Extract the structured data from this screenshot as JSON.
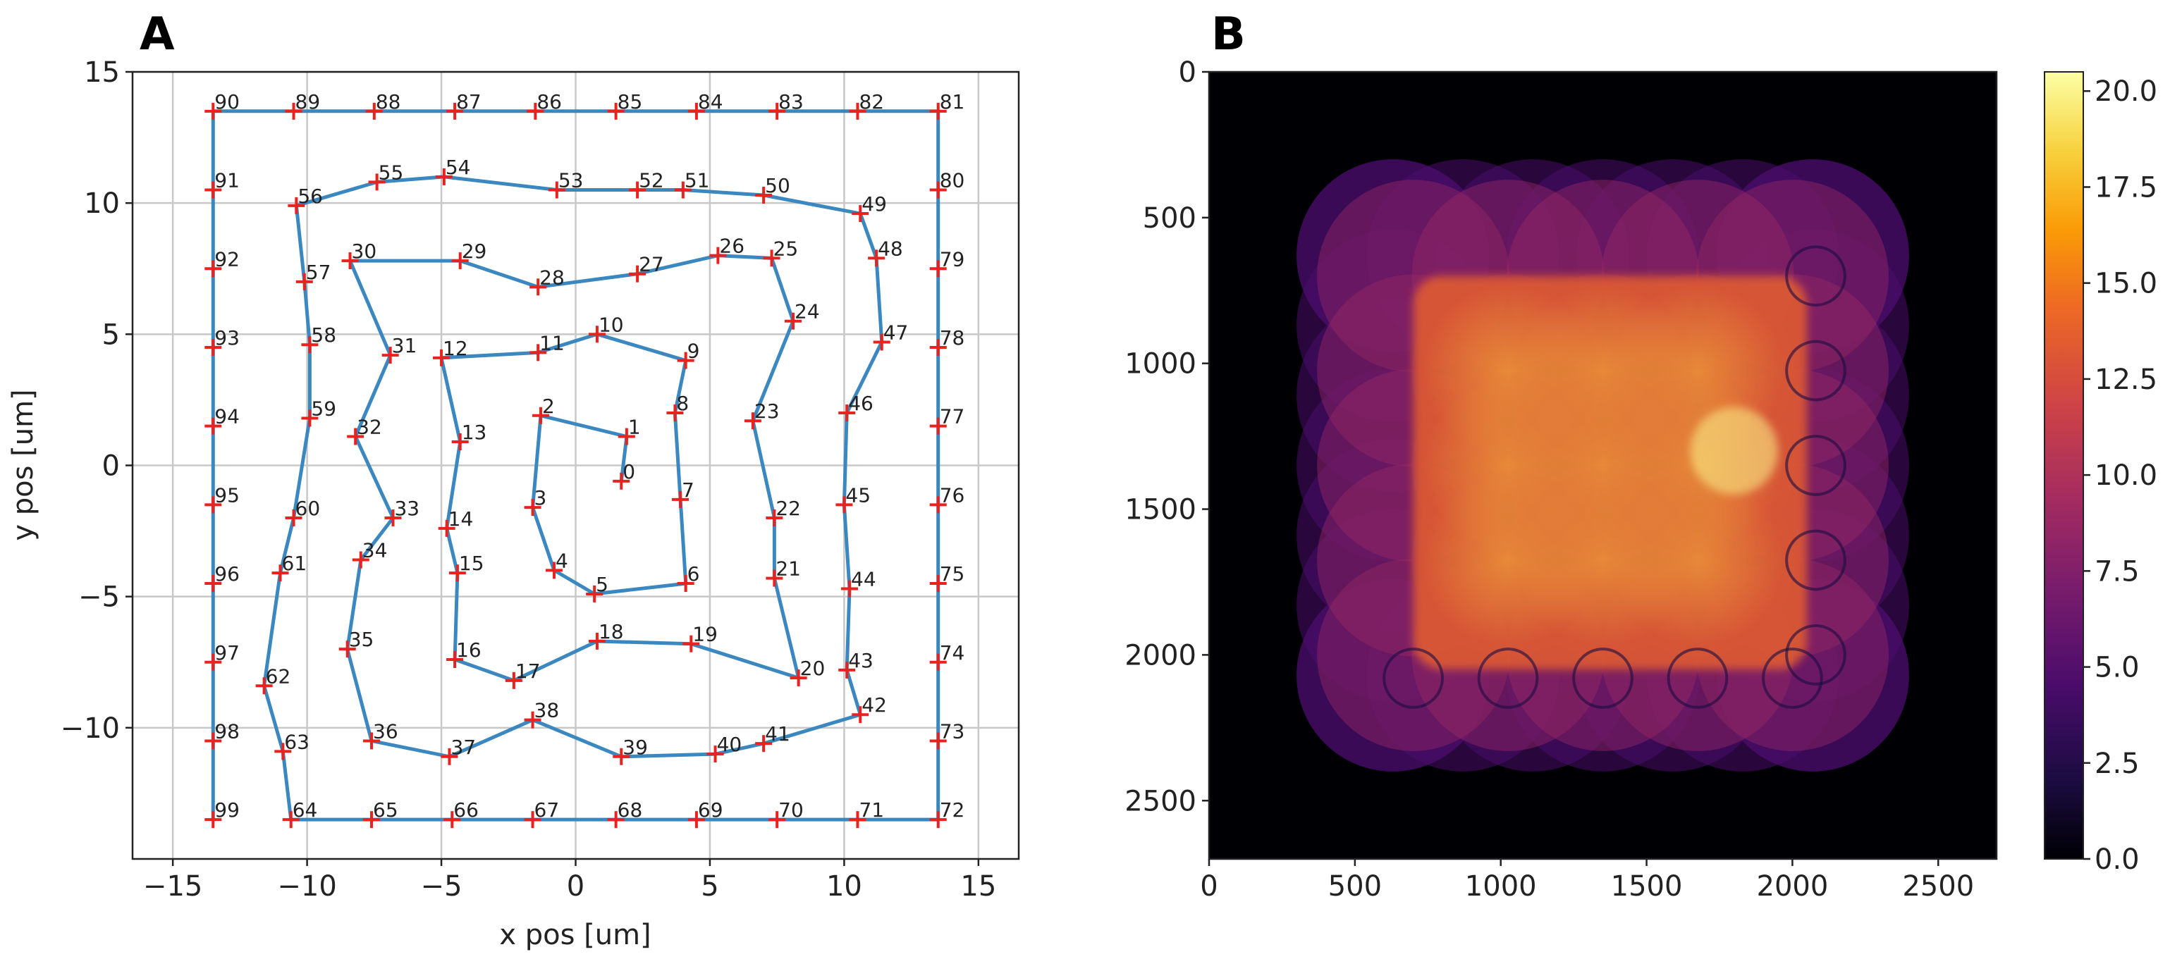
{
  "chart_data": [
    {
      "type": "line",
      "panel_label": "A",
      "xlabel": "x pos [um]",
      "ylabel": "y pos [um]",
      "xlim": [
        -16.5,
        16.5
      ],
      "ylim": [
        -15,
        15
      ],
      "xticks": [
        -15,
        -10,
        -5,
        0,
        5,
        10,
        15
      ],
      "yticks": [
        -10,
        -5,
        0,
        5,
        10,
        15
      ],
      "xtick_labels": [
        "−15",
        "−10",
        "−5",
        "0",
        "5",
        "10",
        "15"
      ],
      "ytick_labels": [
        "−10",
        "−5",
        "0",
        "5",
        "10",
        "15"
      ],
      "grid": true,
      "line_color": "#3b87bf",
      "marker_color": "#e8231f",
      "series": [
        {
          "name": "scan path",
          "points": [
            {
              "label": "0",
              "x": 1.7,
              "y": -0.6
            },
            {
              "label": "1",
              "x": 1.9,
              "y": 1.1
            },
            {
              "label": "2",
              "x": -1.3,
              "y": 1.9
            },
            {
              "label": "3",
              "x": -1.6,
              "y": -1.6
            },
            {
              "label": "4",
              "x": -0.8,
              "y": -4.0
            },
            {
              "label": "5",
              "x": 0.7,
              "y": -4.9
            },
            {
              "label": "6",
              "x": 4.1,
              "y": -4.5
            },
            {
              "label": "7",
              "x": 3.9,
              "y": -1.3
            },
            {
              "label": "8",
              "x": 3.7,
              "y": 2.0
            },
            {
              "label": "9",
              "x": 4.1,
              "y": 4.0
            },
            {
              "label": "10",
              "x": 0.8,
              "y": 5.0
            },
            {
              "label": "11",
              "x": -1.4,
              "y": 4.3
            },
            {
              "label": "12",
              "x": -5.0,
              "y": 4.1
            },
            {
              "label": "13",
              "x": -4.3,
              "y": 0.9
            },
            {
              "label": "14",
              "x": -4.8,
              "y": -2.4
            },
            {
              "label": "15",
              "x": -4.4,
              "y": -4.1
            },
            {
              "label": "16",
              "x": -4.5,
              "y": -7.4
            },
            {
              "label": "17",
              "x": -2.3,
              "y": -8.2
            },
            {
              "label": "18",
              "x": 0.8,
              "y": -6.7
            },
            {
              "label": "19",
              "x": 4.3,
              "y": -6.8
            },
            {
              "label": "20",
              "x": 8.3,
              "y": -8.1
            },
            {
              "label": "21",
              "x": 7.4,
              "y": -4.3
            },
            {
              "label": "22",
              "x": 7.4,
              "y": -2.0
            },
            {
              "label": "23",
              "x": 6.6,
              "y": 1.7
            },
            {
              "label": "24",
              "x": 8.1,
              "y": 5.5
            },
            {
              "label": "25",
              "x": 7.3,
              "y": 7.9
            },
            {
              "label": "26",
              "x": 5.3,
              "y": 8.0
            },
            {
              "label": "27",
              "x": 2.3,
              "y": 7.3
            },
            {
              "label": "28",
              "x": -1.4,
              "y": 6.8
            },
            {
              "label": "29",
              "x": -4.3,
              "y": 7.8
            },
            {
              "label": "30",
              "x": -8.4,
              "y": 7.8
            },
            {
              "label": "31",
              "x": -6.9,
              "y": 4.2
            },
            {
              "label": "32",
              "x": -8.2,
              "y": 1.1
            },
            {
              "label": "33",
              "x": -6.8,
              "y": -2.0
            },
            {
              "label": "34",
              "x": -8.0,
              "y": -3.6
            },
            {
              "label": "35",
              "x": -8.5,
              "y": -7.0
            },
            {
              "label": "36",
              "x": -7.6,
              "y": -10.5
            },
            {
              "label": "37",
              "x": -4.7,
              "y": -11.1
            },
            {
              "label": "38",
              "x": -1.6,
              "y": -9.7
            },
            {
              "label": "39",
              "x": 1.7,
              "y": -11.1
            },
            {
              "label": "40",
              "x": 5.2,
              "y": -11.0
            },
            {
              "label": "41",
              "x": 7.0,
              "y": -10.6
            },
            {
              "label": "42",
              "x": 10.6,
              "y": -9.5
            },
            {
              "label": "43",
              "x": 10.1,
              "y": -7.8
            },
            {
              "label": "44",
              "x": 10.2,
              "y": -4.7
            },
            {
              "label": "45",
              "x": 10.0,
              "y": -1.5
            },
            {
              "label": "46",
              "x": 10.1,
              "y": 2.0
            },
            {
              "label": "47",
              "x": 11.4,
              "y": 4.7
            },
            {
              "label": "48",
              "x": 11.2,
              "y": 7.9
            },
            {
              "label": "49",
              "x": 10.6,
              "y": 9.6
            },
            {
              "label": "50",
              "x": 7.0,
              "y": 10.3
            },
            {
              "label": "51",
              "x": 4.0,
              "y": 10.5
            },
            {
              "label": "52",
              "x": 2.3,
              "y": 10.5
            },
            {
              "label": "53",
              "x": -0.7,
              "y": 10.5
            },
            {
              "label": "54",
              "x": -4.9,
              "y": 11.0
            },
            {
              "label": "55",
              "x": -7.4,
              "y": 10.8
            },
            {
              "label": "56",
              "x": -10.4,
              "y": 9.9
            },
            {
              "label": "57",
              "x": -10.1,
              "y": 7.0
            },
            {
              "label": "58",
              "x": -9.9,
              "y": 4.6
            },
            {
              "label": "59",
              "x": -9.9,
              "y": 1.8
            },
            {
              "label": "60",
              "x": -10.5,
              "y": -2.0
            },
            {
              "label": "61",
              "x": -11.0,
              "y": -4.1
            },
            {
              "label": "62",
              "x": -11.6,
              "y": -8.4
            },
            {
              "label": "63",
              "x": -10.9,
              "y": -10.9
            },
            {
              "label": "64",
              "x": -10.6,
              "y": -13.5
            },
            {
              "label": "65",
              "x": -7.6,
              "y": -13.5
            },
            {
              "label": "66",
              "x": -4.6,
              "y": -13.5
            },
            {
              "label": "67",
              "x": -1.6,
              "y": -13.5
            },
            {
              "label": "68",
              "x": 1.5,
              "y": -13.5
            },
            {
              "label": "69",
              "x": 4.5,
              "y": -13.5
            },
            {
              "label": "70",
              "x": 7.5,
              "y": -13.5
            },
            {
              "label": "71",
              "x": 10.5,
              "y": -13.5
            },
            {
              "label": "72",
              "x": 13.5,
              "y": -13.5
            },
            {
              "label": "73",
              "x": 13.5,
              "y": -10.5
            },
            {
              "label": "74",
              "x": 13.5,
              "y": -7.5
            },
            {
              "label": "75",
              "x": 13.5,
              "y": -4.5
            },
            {
              "label": "76",
              "x": 13.5,
              "y": -1.5
            },
            {
              "label": "77",
              "x": 13.5,
              "y": 1.5
            },
            {
              "label": "78",
              "x": 13.5,
              "y": 4.5
            },
            {
              "label": "79",
              "x": 13.5,
              "y": 7.5
            },
            {
              "label": "80",
              "x": 13.5,
              "y": 10.5
            },
            {
              "label": "81",
              "x": 13.5,
              "y": 13.5
            },
            {
              "label": "82",
              "x": 10.5,
              "y": 13.5
            },
            {
              "label": "83",
              "x": 7.5,
              "y": 13.5
            },
            {
              "label": "84",
              "x": 4.5,
              "y": 13.5
            },
            {
              "label": "85",
              "x": 1.5,
              "y": 13.5
            },
            {
              "label": "86",
              "x": -1.5,
              "y": 13.5
            },
            {
              "label": "87",
              "x": -4.5,
              "y": 13.5
            },
            {
              "label": "88",
              "x": -7.5,
              "y": 13.5
            },
            {
              "label": "89",
              "x": -10.5,
              "y": 13.5
            },
            {
              "label": "90",
              "x": -13.5,
              "y": 13.5
            },
            {
              "label": "91",
              "x": -13.5,
              "y": 10.5
            },
            {
              "label": "92",
              "x": -13.5,
              "y": 7.5
            },
            {
              "label": "93",
              "x": -13.5,
              "y": 4.5
            },
            {
              "label": "94",
              "x": -13.5,
              "y": 1.5
            },
            {
              "label": "95",
              "x": -13.5,
              "y": -1.5
            },
            {
              "label": "96",
              "x": -13.5,
              "y": -4.5
            },
            {
              "label": "97",
              "x": -13.5,
              "y": -7.5
            },
            {
              "label": "98",
              "x": -13.5,
              "y": -10.5
            },
            {
              "label": "99",
              "x": -13.5,
              "y": -13.5
            }
          ]
        }
      ]
    },
    {
      "type": "heatmap",
      "panel_label": "B",
      "xlim": [
        0,
        2700
      ],
      "ylim": [
        2700,
        0
      ],
      "xticks": [
        0,
        500,
        1000,
        1500,
        2000,
        2500
      ],
      "yticks": [
        0,
        500,
        1000,
        1500,
        2000,
        2500
      ],
      "xtick_labels": [
        "0",
        "500",
        "1000",
        "1500",
        "2000",
        "2500"
      ],
      "ytick_labels": [
        "0",
        "500",
        "1000",
        "1500",
        "2000",
        "2500"
      ],
      "colormap": "inferno",
      "colorbar": {
        "range": [
          0,
          20.5
        ],
        "ticks": [
          0.0,
          2.5,
          5.0,
          7.5,
          10.0,
          12.5,
          15.0,
          17.5,
          20.0
        ],
        "tick_labels": [
          "0.0",
          "2.5",
          "5.0",
          "7.5",
          "10.0",
          "12.5",
          "15.0",
          "17.5",
          "20.0"
        ]
      },
      "illumination": {
        "probe_radius": 330,
        "grid_centers": [
          700,
          1025,
          1350,
          1675,
          2000
        ],
        "outer_extent": [
          300,
          2400
        ],
        "core_extent": [
          700,
          2050
        ],
        "peak_value": 20.0,
        "outer_value": 4.5
      }
    }
  ]
}
